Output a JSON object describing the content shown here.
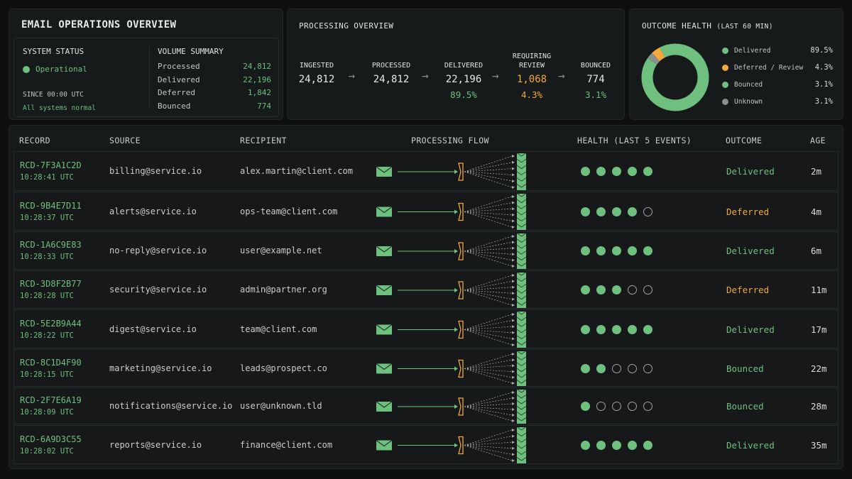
{
  "ops": {
    "title": "EMAIL OPERATIONS OVERVIEW",
    "system_status_label": "SYSTEM STATUS",
    "status": "Operational",
    "since": "SINCE 00:00 UTC",
    "note": "All systems normal",
    "volume_label": "VOLUME SUMMARY",
    "volume": [
      {
        "k": "Processed",
        "v": "24,812"
      },
      {
        "k": "Delivered",
        "v": "22,196"
      },
      {
        "k": "Deferred",
        "v": "1,842"
      },
      {
        "k": "Bounced",
        "v": "774"
      }
    ]
  },
  "processing": {
    "title": "PROCESSING OVERVIEW",
    "stages": [
      {
        "name": "INGESTED",
        "value": "24,812",
        "pct": "",
        "color": "#e6e9e7"
      },
      {
        "name": "PROCESSED",
        "value": "24,812",
        "pct": "",
        "color": "#e6e9e7"
      },
      {
        "name": "DELIVERED",
        "value": "22,196",
        "pct": "89.5%",
        "color": "#e6e9e7",
        "pct_color": "#6fbf7f"
      },
      {
        "name": "REQUIRING REVIEW",
        "value": "1,068",
        "pct": "4.3%",
        "color": "#f0a93a",
        "pct_color": "#f0a93a"
      },
      {
        "name": "BOUNCED",
        "value": "774",
        "pct": "3.1%",
        "color": "#e6e9e7",
        "pct_color": "#6fbf7f"
      }
    ],
    "arrow_icon": "arrow-right-icon"
  },
  "health": {
    "title": "OUTCOME HEALTH",
    "title_suffix": "(LAST 60 MIN)",
    "legend": [
      {
        "name": "Delivered",
        "value": "89.5%",
        "pct": 89.5,
        "color": "#6fbf7f"
      },
      {
        "name": "Deferred / Review",
        "value": "4.3%",
        "pct": 4.3,
        "color": "#f0a93a"
      },
      {
        "name": "Bounced",
        "value": "3.1%",
        "pct": 3.1,
        "color": "#6fbf7f"
      },
      {
        "name": "Unknown",
        "value": "3.1%",
        "pct": 3.1,
        "color": "#8a8f8c"
      }
    ]
  },
  "table": {
    "headers": {
      "record": "RECORD",
      "source": "SOURCE",
      "recipient": "RECIPIENT",
      "flow": "PROCESSING FLOW",
      "health": "HEALTH (LAST 5 EVENTS)",
      "outcome": "OUTCOME",
      "age": "AGE"
    },
    "colors": {
      "Delivered": "#6fbf7f",
      "Deferred": "#f0a93a",
      "Bounced": "#6fbf7f"
    },
    "rows": [
      {
        "id": "RCD-7F3A1C2D",
        "time": "10:28:41 UTC",
        "source": "billing@service.io",
        "recipient": "alex.martin@client.com",
        "health": [
          1,
          1,
          1,
          1,
          1
        ],
        "outcome": "Delivered",
        "age": "2m"
      },
      {
        "id": "RCD-9B4E7D11",
        "time": "10:28:37 UTC",
        "source": "alerts@service.io",
        "recipient": "ops-team@client.com",
        "health": [
          1,
          1,
          1,
          1,
          0
        ],
        "outcome": "Deferred",
        "age": "4m"
      },
      {
        "id": "RCD-1A6C9E83",
        "time": "10:28:33 UTC",
        "source": "no-reply@service.io",
        "recipient": "user@example.net",
        "health": [
          1,
          1,
          1,
          1,
          1
        ],
        "outcome": "Delivered",
        "age": "6m"
      },
      {
        "id": "RCD-3D8F2B77",
        "time": "10:28:28 UTC",
        "source": "security@service.io",
        "recipient": "admin@partner.org",
        "health": [
          1,
          1,
          1,
          0,
          0
        ],
        "outcome": "Deferred",
        "age": "11m"
      },
      {
        "id": "RCD-5E2B9A44",
        "time": "10:28:22 UTC",
        "source": "digest@service.io",
        "recipient": "team@client.com",
        "health": [
          1,
          1,
          1,
          1,
          1
        ],
        "outcome": "Delivered",
        "age": "17m"
      },
      {
        "id": "RCD-8C1D4F90",
        "time": "10:28:15 UTC",
        "source": "marketing@service.io",
        "recipient": "leads@prospect.co",
        "health": [
          1,
          1,
          0,
          0,
          0
        ],
        "outcome": "Bounced",
        "age": "22m"
      },
      {
        "id": "RCD-2F7E6A19",
        "time": "10:28:09 UTC",
        "source": "notifications@service.io",
        "recipient": "user@unknown.tld",
        "health": [
          1,
          0,
          0,
          0,
          0
        ],
        "outcome": "Bounced",
        "age": "28m"
      },
      {
        "id": "RCD-6A9D3C55",
        "time": "10:28:02 UTC",
        "source": "reports@service.io",
        "recipient": "finance@client.com",
        "health": [
          1,
          1,
          1,
          1,
          1
        ],
        "outcome": "Delivered",
        "age": "35m"
      }
    ]
  }
}
